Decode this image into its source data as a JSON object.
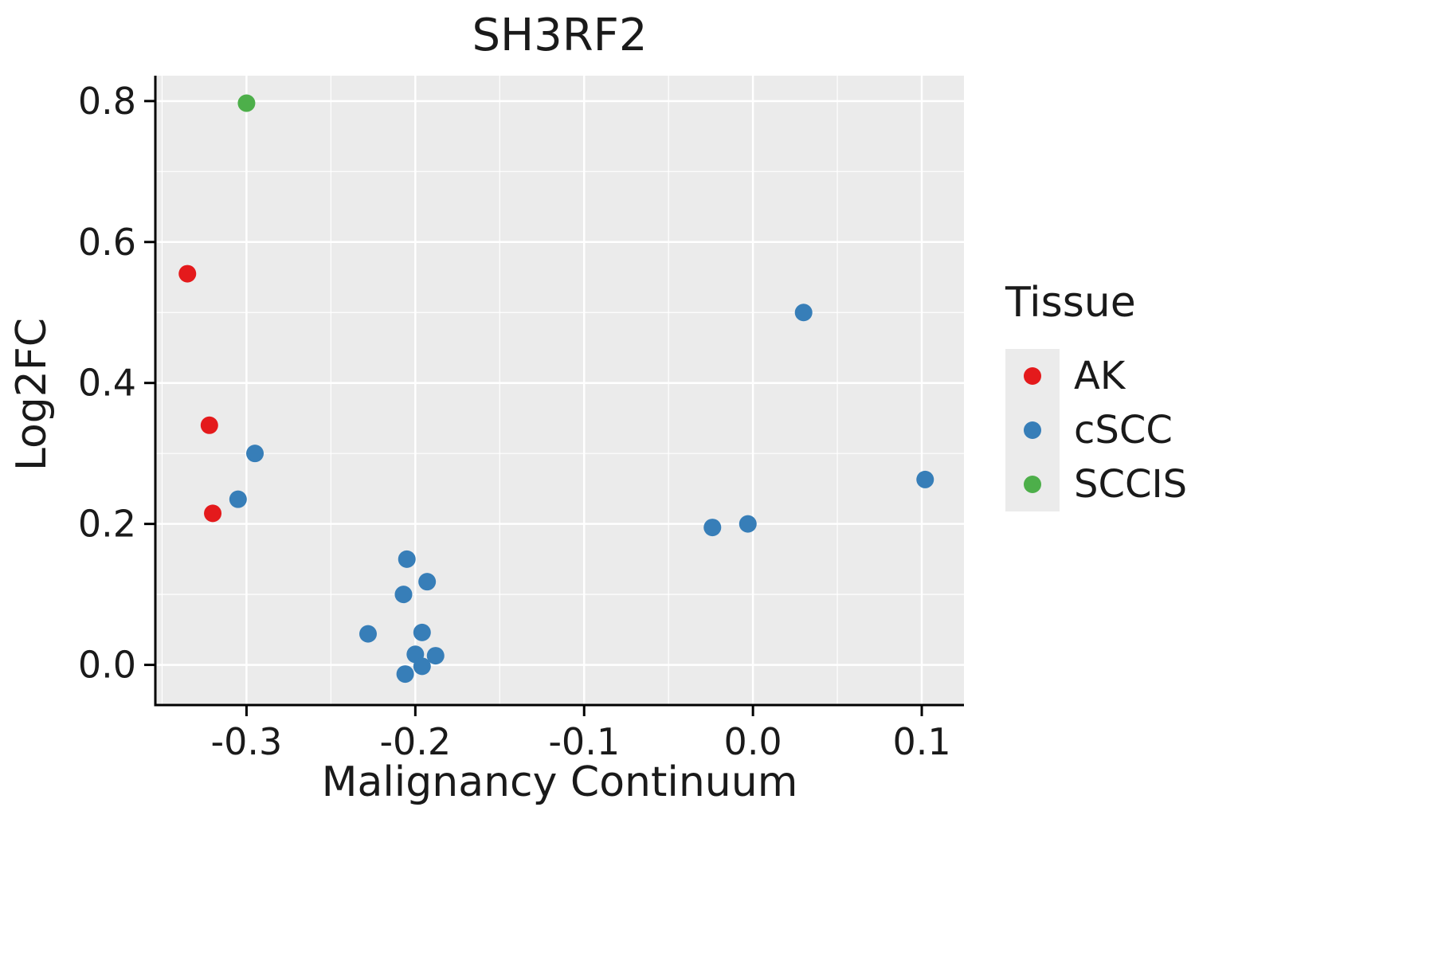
{
  "chart_data": {
    "type": "scatter",
    "title": "SH3RF2",
    "xlabel": "Malignancy Continuum",
    "ylabel": "Log2FC",
    "xlim": [
      -0.354,
      0.125
    ],
    "ylim": [
      -0.057,
      0.836
    ],
    "x_ticks": [
      -0.3,
      -0.2,
      -0.1,
      0.0,
      0.1
    ],
    "x_tick_labels": [
      "-0.3",
      "-0.2",
      "-0.1",
      "0.0",
      "0.1"
    ],
    "y_ticks": [
      0.0,
      0.2,
      0.4,
      0.6,
      0.8
    ],
    "y_tick_labels": [
      "0.0",
      "0.2",
      "0.4",
      "0.6",
      "0.8"
    ],
    "grid": true,
    "panel_background": "#EBEBEB",
    "grid_color": "#FFFFFF",
    "axis_color": "#000000",
    "point_radius": 11,
    "legend": {
      "title": "Tissue",
      "position": "right"
    },
    "series": [
      {
        "name": "AK",
        "color": "#E41A1C",
        "points": [
          [
            -0.335,
            0.555
          ],
          [
            -0.322,
            0.34
          ],
          [
            -0.32,
            0.215
          ]
        ]
      },
      {
        "name": "cSCC",
        "color": "#377EB8",
        "points": [
          [
            -0.295,
            0.3
          ],
          [
            -0.305,
            0.235
          ],
          [
            0.03,
            0.5
          ],
          [
            0.102,
            0.263
          ],
          [
            -0.024,
            0.195
          ],
          [
            -0.003,
            0.2
          ],
          [
            -0.205,
            0.15
          ],
          [
            -0.193,
            0.118
          ],
          [
            -0.207,
            0.1
          ],
          [
            -0.228,
            0.044
          ],
          [
            -0.196,
            0.046
          ],
          [
            -0.2,
            0.015
          ],
          [
            -0.188,
            0.013
          ],
          [
            -0.196,
            -0.002
          ],
          [
            -0.206,
            -0.013
          ]
        ]
      },
      {
        "name": "SCCIS",
        "color": "#4DAF4A",
        "points": [
          [
            -0.3,
            0.797
          ]
        ]
      }
    ]
  }
}
